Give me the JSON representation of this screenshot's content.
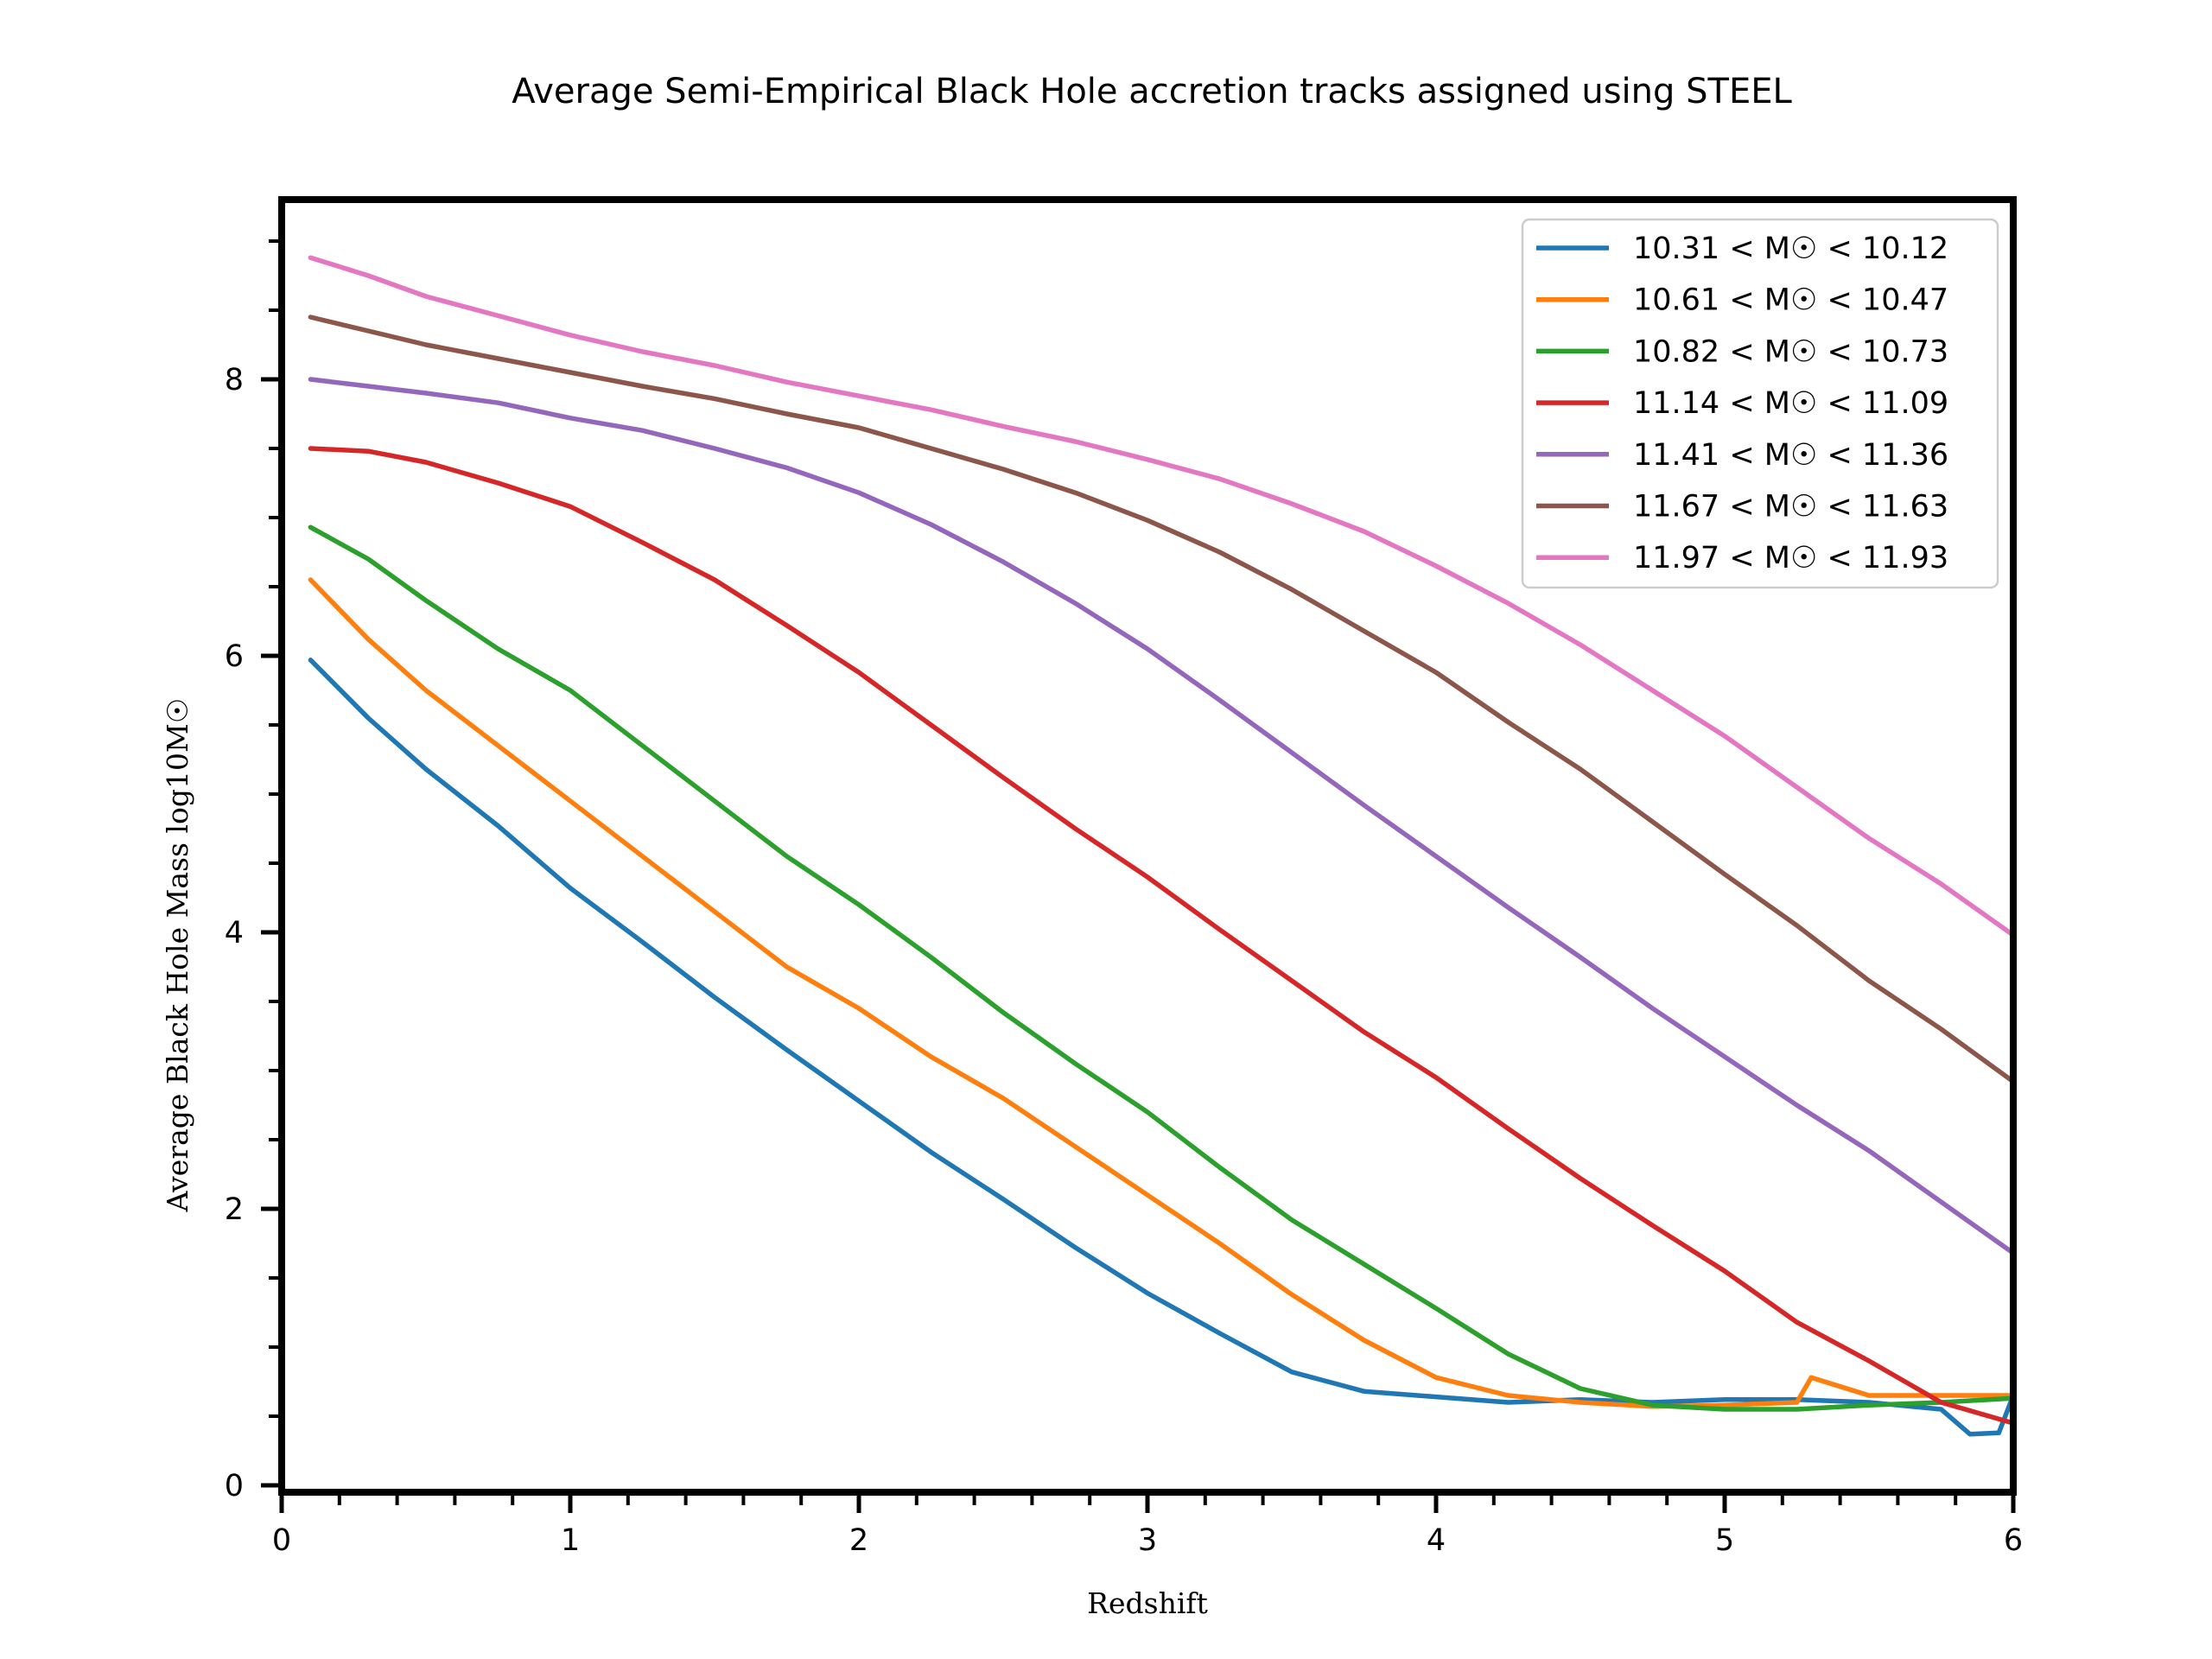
{
  "chart_data": {
    "type": "line",
    "title": "Average Semi-Empirical Black Hole accretion tracks assigned using STEEL",
    "xlabel": "Redshift",
    "ylabel": "Average Black Hole Mass log10M☉",
    "xlim": [
      0,
      6
    ],
    "ylim": [
      -0.05,
      9.3
    ],
    "x_ticks": [
      "0",
      "1",
      "2",
      "3",
      "4",
      "5",
      "6"
    ],
    "y_ticks": [
      "0",
      "2",
      "4",
      "6",
      "8"
    ],
    "legend_position": "top-right",
    "grid": false,
    "series": [
      {
        "name": "10.31 < M☉ < 10.12",
        "color": "#1f77b4",
        "points": [
          [
            0.1,
            5.97
          ],
          [
            0.3,
            5.55
          ],
          [
            0.5,
            5.18
          ],
          [
            0.75,
            4.77
          ],
          [
            1.0,
            4.32
          ],
          [
            1.25,
            3.93
          ],
          [
            1.5,
            3.53
          ],
          [
            1.75,
            3.15
          ],
          [
            2.0,
            2.78
          ],
          [
            2.25,
            2.41
          ],
          [
            2.5,
            2.07
          ],
          [
            2.75,
            1.72
          ],
          [
            3.0,
            1.39
          ],
          [
            3.25,
            1.1
          ],
          [
            3.5,
            0.82
          ],
          [
            3.75,
            0.68
          ],
          [
            4.0,
            0.64
          ],
          [
            4.25,
            0.6
          ],
          [
            4.5,
            0.62
          ],
          [
            4.75,
            0.6
          ],
          [
            5.0,
            0.62
          ],
          [
            5.25,
            0.62
          ],
          [
            5.5,
            0.6
          ],
          [
            5.75,
            0.55
          ],
          [
            5.85,
            0.37
          ],
          [
            5.95,
            0.38
          ],
          [
            6.0,
            0.65
          ]
        ]
      },
      {
        "name": "10.61 < M☉ < 10.47",
        "color": "#ff7f0e",
        "points": [
          [
            0.1,
            6.55
          ],
          [
            0.3,
            6.12
          ],
          [
            0.5,
            5.75
          ],
          [
            0.75,
            5.35
          ],
          [
            1.0,
            4.95
          ],
          [
            1.25,
            4.55
          ],
          [
            1.5,
            4.15
          ],
          [
            1.75,
            3.75
          ],
          [
            2.0,
            3.45
          ],
          [
            2.25,
            3.1
          ],
          [
            2.5,
            2.8
          ],
          [
            2.75,
            2.45
          ],
          [
            3.0,
            2.1
          ],
          [
            3.25,
            1.75
          ],
          [
            3.5,
            1.38
          ],
          [
            3.75,
            1.05
          ],
          [
            4.0,
            0.78
          ],
          [
            4.25,
            0.65
          ],
          [
            4.5,
            0.6
          ],
          [
            4.75,
            0.57
          ],
          [
            5.0,
            0.58
          ],
          [
            5.25,
            0.6
          ],
          [
            5.3,
            0.78
          ],
          [
            5.5,
            0.65
          ],
          [
            5.75,
            0.65
          ],
          [
            6.0,
            0.65
          ]
        ]
      },
      {
        "name": "10.82 < M☉ < 10.73",
        "color": "#2ca02c",
        "points": [
          [
            0.1,
            6.93
          ],
          [
            0.3,
            6.7
          ],
          [
            0.5,
            6.4
          ],
          [
            0.75,
            6.05
          ],
          [
            1.0,
            5.75
          ],
          [
            1.25,
            5.35
          ],
          [
            1.5,
            4.95
          ],
          [
            1.75,
            4.55
          ],
          [
            2.0,
            4.2
          ],
          [
            2.25,
            3.82
          ],
          [
            2.5,
            3.42
          ],
          [
            2.75,
            3.05
          ],
          [
            3.0,
            2.7
          ],
          [
            3.25,
            2.3
          ],
          [
            3.5,
            1.92
          ],
          [
            3.75,
            1.6
          ],
          [
            4.0,
            1.28
          ],
          [
            4.25,
            0.95
          ],
          [
            4.5,
            0.7
          ],
          [
            4.75,
            0.58
          ],
          [
            5.0,
            0.55
          ],
          [
            5.25,
            0.55
          ],
          [
            5.5,
            0.58
          ],
          [
            5.75,
            0.6
          ],
          [
            6.0,
            0.63
          ]
        ]
      },
      {
        "name": "11.14 < M☉ < 11.09",
        "color": "#d62728",
        "points": [
          [
            0.1,
            7.5
          ],
          [
            0.3,
            7.48
          ],
          [
            0.5,
            7.4
          ],
          [
            0.75,
            7.25
          ],
          [
            1.0,
            7.08
          ],
          [
            1.25,
            6.82
          ],
          [
            1.5,
            6.55
          ],
          [
            1.75,
            6.22
          ],
          [
            2.0,
            5.88
          ],
          [
            2.25,
            5.5
          ],
          [
            2.5,
            5.12
          ],
          [
            2.75,
            4.75
          ],
          [
            3.0,
            4.4
          ],
          [
            3.25,
            4.02
          ],
          [
            3.5,
            3.65
          ],
          [
            3.75,
            3.28
          ],
          [
            4.0,
            2.95
          ],
          [
            4.25,
            2.58
          ],
          [
            4.5,
            2.22
          ],
          [
            4.75,
            1.88
          ],
          [
            5.0,
            1.55
          ],
          [
            5.25,
            1.18
          ],
          [
            5.5,
            0.9
          ],
          [
            5.75,
            0.6
          ],
          [
            6.0,
            0.45
          ]
        ]
      },
      {
        "name": "11.41 < M☉ < 11.36",
        "color": "#9467bd",
        "points": [
          [
            0.1,
            8.0
          ],
          [
            0.3,
            7.95
          ],
          [
            0.5,
            7.9
          ],
          [
            0.75,
            7.83
          ],
          [
            1.0,
            7.72
          ],
          [
            1.25,
            7.63
          ],
          [
            1.5,
            7.5
          ],
          [
            1.75,
            7.36
          ],
          [
            2.0,
            7.18
          ],
          [
            2.25,
            6.95
          ],
          [
            2.5,
            6.68
          ],
          [
            2.75,
            6.38
          ],
          [
            3.0,
            6.05
          ],
          [
            3.25,
            5.68
          ],
          [
            3.5,
            5.3
          ],
          [
            3.75,
            4.92
          ],
          [
            4.0,
            4.55
          ],
          [
            4.25,
            4.18
          ],
          [
            4.5,
            3.82
          ],
          [
            4.75,
            3.45
          ],
          [
            5.0,
            3.1
          ],
          [
            5.25,
            2.75
          ],
          [
            5.5,
            2.42
          ],
          [
            5.75,
            2.05
          ],
          [
            6.0,
            1.68
          ]
        ]
      },
      {
        "name": "11.67 < M☉ < 11.63",
        "color": "#8c564b",
        "points": [
          [
            0.1,
            8.45
          ],
          [
            0.3,
            8.35
          ],
          [
            0.5,
            8.25
          ],
          [
            0.75,
            8.15
          ],
          [
            1.0,
            8.05
          ],
          [
            1.25,
            7.95
          ],
          [
            1.5,
            7.86
          ],
          [
            1.75,
            7.75
          ],
          [
            2.0,
            7.65
          ],
          [
            2.25,
            7.5
          ],
          [
            2.5,
            7.35
          ],
          [
            2.75,
            7.18
          ],
          [
            3.0,
            6.98
          ],
          [
            3.25,
            6.75
          ],
          [
            3.5,
            6.48
          ],
          [
            3.75,
            6.18
          ],
          [
            4.0,
            5.88
          ],
          [
            4.25,
            5.52
          ],
          [
            4.5,
            5.18
          ],
          [
            4.75,
            4.8
          ],
          [
            5.0,
            4.42
          ],
          [
            5.25,
            4.05
          ],
          [
            5.5,
            3.65
          ],
          [
            5.75,
            3.3
          ],
          [
            6.0,
            2.92
          ]
        ]
      },
      {
        "name": "11.97 < M☉ < 11.93",
        "color": "#e377c2",
        "points": [
          [
            0.1,
            8.88
          ],
          [
            0.3,
            8.75
          ],
          [
            0.5,
            8.6
          ],
          [
            0.75,
            8.46
          ],
          [
            1.0,
            8.32
          ],
          [
            1.25,
            8.2
          ],
          [
            1.5,
            8.1
          ],
          [
            1.75,
            7.98
          ],
          [
            2.0,
            7.88
          ],
          [
            2.25,
            7.78
          ],
          [
            2.5,
            7.66
          ],
          [
            2.75,
            7.55
          ],
          [
            3.0,
            7.42
          ],
          [
            3.25,
            7.28
          ],
          [
            3.5,
            7.1
          ],
          [
            3.75,
            6.9
          ],
          [
            4.0,
            6.65
          ],
          [
            4.25,
            6.38
          ],
          [
            4.5,
            6.08
          ],
          [
            4.75,
            5.75
          ],
          [
            5.0,
            5.42
          ],
          [
            5.25,
            5.05
          ],
          [
            5.5,
            4.68
          ],
          [
            5.75,
            4.35
          ],
          [
            6.0,
            3.98
          ]
        ]
      }
    ]
  }
}
